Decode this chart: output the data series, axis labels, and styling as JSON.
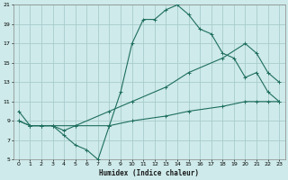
{
  "xlabel": "Humidex (Indice chaleur)",
  "background_color": "#ceeaea",
  "grid_color": "#a8cccc",
  "line_color": "#1e6e5e",
  "xlim": [
    -0.5,
    23.5
  ],
  "ylim": [
    5,
    21
  ],
  "xticks": [
    0,
    1,
    2,
    3,
    4,
    5,
    6,
    7,
    8,
    9,
    10,
    11,
    12,
    13,
    14,
    15,
    16,
    17,
    18,
    19,
    20,
    21,
    22,
    23
  ],
  "yticks": [
    5,
    7,
    9,
    11,
    13,
    15,
    17,
    19,
    21
  ],
  "line1_x": [
    0,
    1,
    2,
    3,
    4,
    5,
    6,
    7,
    8,
    9,
    10,
    11,
    12,
    13,
    14,
    15,
    16,
    17,
    18,
    19,
    20,
    21,
    22,
    23
  ],
  "line1_y": [
    10,
    8.5,
    8.5,
    8.5,
    7.5,
    6.5,
    6,
    5,
    8.5,
    12,
    17,
    19.5,
    19.5,
    20.5,
    21,
    20,
    18.5,
    18,
    16,
    15.5,
    13.5,
    14,
    12,
    11
  ],
  "line2_x": [
    0,
    1,
    2,
    3,
    4,
    5,
    8,
    10,
    13,
    15,
    18,
    20,
    21,
    22,
    23
  ],
  "line2_y": [
    9,
    8.5,
    8.5,
    8.5,
    8,
    8.5,
    8.5,
    9,
    9.5,
    10,
    10.5,
    11,
    11,
    11,
    11
  ],
  "line3_x": [
    0,
    1,
    2,
    3,
    5,
    8,
    10,
    13,
    15,
    18,
    20,
    21,
    22,
    23
  ],
  "line3_y": [
    9,
    8.5,
    8.5,
    8.5,
    8.5,
    10,
    11,
    12.5,
    14,
    15.5,
    17,
    16,
    14,
    13
  ]
}
